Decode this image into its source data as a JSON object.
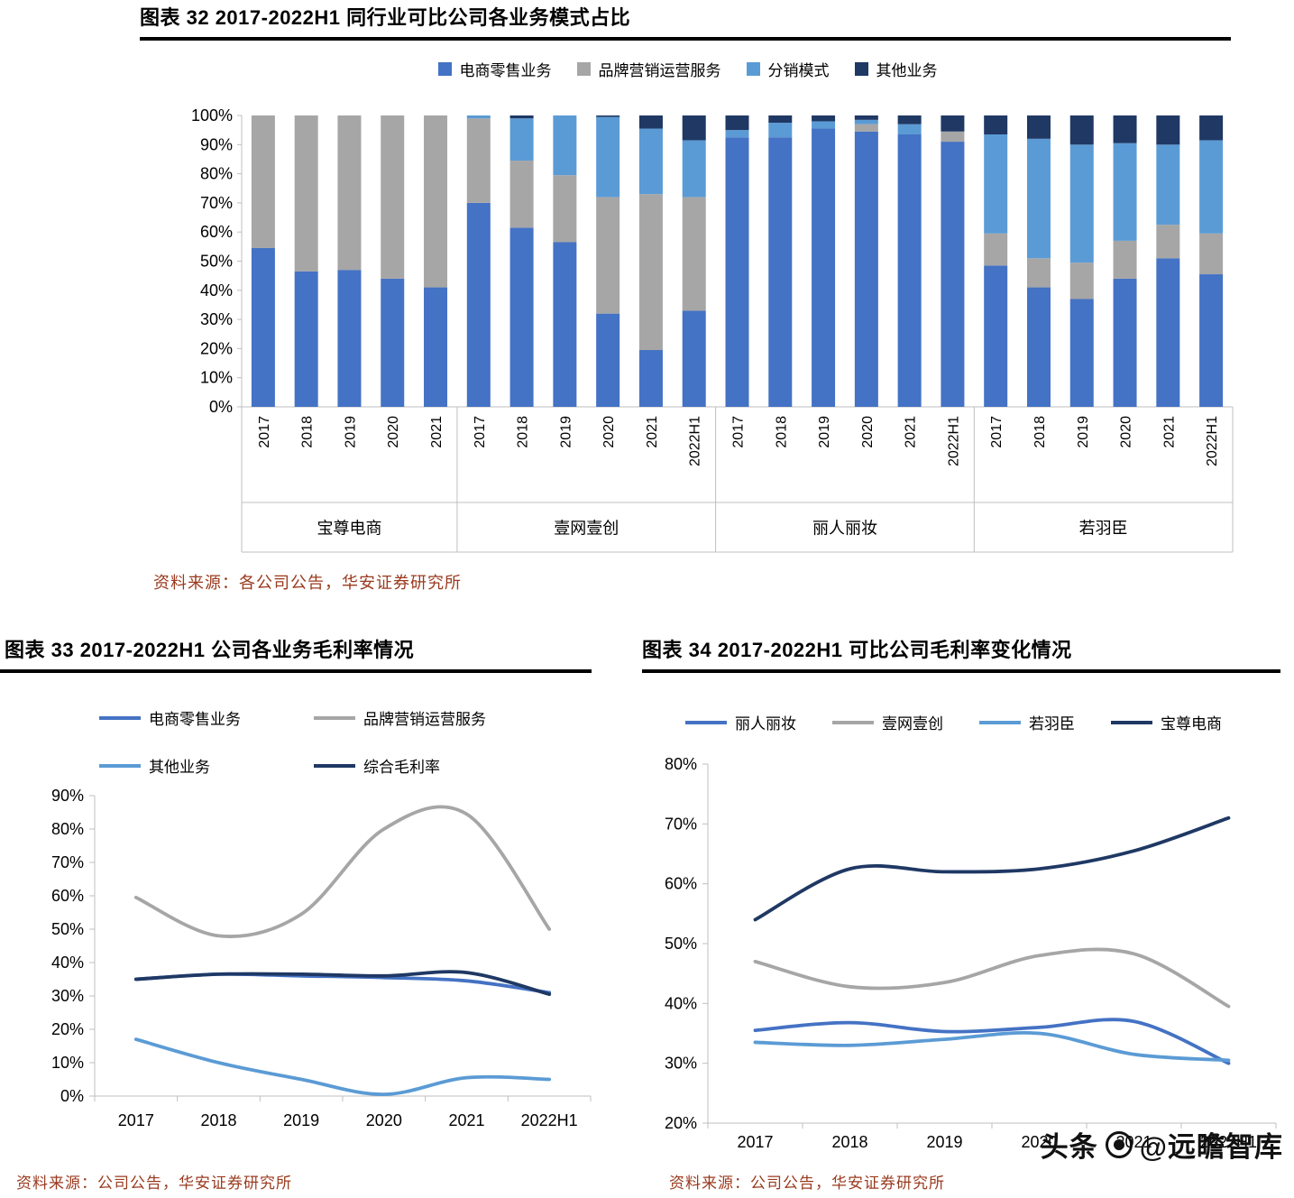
{
  "figures": [
    {
      "title": "图表 32 2017-2022H1 同行业可比公司各业务模式占比",
      "source": "资料来源：各公司公告，华安证券研究所"
    },
    {
      "title": "图表 33 2017-2022H1 公司各业务毛利率情况",
      "source": "资料来源：公司公告，华安证券研究所"
    },
    {
      "title": "图表 34 2017-2022H1 可比公司毛利率变化情况",
      "source": "资料来源：公司公告，华安证券研究所"
    }
  ],
  "watermark": {
    "brand": "头条",
    "handle": "@远瞻智库"
  },
  "chart_data": [
    {
      "type": "bar",
      "stacked": true,
      "title": "图表 32 2017-2022H1 同行业可比公司各业务模式占比",
      "ylim": [
        0,
        100
      ],
      "ytick_step": 10,
      "unit": "%",
      "legend_position": "top",
      "grid": false,
      "series": [
        {
          "name": "电商零售业务",
          "color": "#4472C4"
        },
        {
          "name": "品牌营销运营服务",
          "color": "#A6A6A6"
        },
        {
          "name": "分销模式",
          "color": "#5B9BD5"
        },
        {
          "name": "其他业务",
          "color": "#1F3864"
        }
      ],
      "groups": [
        {
          "name": "宝尊电商",
          "categories": [
            "2017",
            "2018",
            "2019",
            "2020",
            "2021"
          ],
          "values": [
            [
              54.5,
              46.5,
              47,
              44,
              41
            ],
            [
              45.5,
              53.5,
              53,
              56,
              59
            ],
            [
              0,
              0,
              0,
              0,
              0
            ],
            [
              0,
              0,
              0,
              0,
              0
            ]
          ]
        },
        {
          "name": "壹网壹创",
          "categories": [
            "2017",
            "2018",
            "2019",
            "2020",
            "2021",
            "2022H1"
          ],
          "values": [
            [
              70,
              61.5,
              56.5,
              32,
              19.5,
              33
            ],
            [
              29,
              23,
              23,
              40,
              53.5,
              39
            ],
            [
              1,
              14.5,
              20.5,
              27.5,
              22.5,
              19.5
            ],
            [
              0,
              1,
              0,
              0.5,
              4.5,
              8.5
            ]
          ]
        },
        {
          "name": "丽人丽妆",
          "categories": [
            "2017",
            "2018",
            "2019",
            "2020",
            "2021",
            "2022H1"
          ],
          "values": [
            [
              92.5,
              92.5,
              95.5,
              94.5,
              93.5,
              91
            ],
            [
              0,
              0,
              0,
              2.5,
              0,
              3.5
            ],
            [
              2.5,
              5,
              2.5,
              1.5,
              3.5,
              0
            ],
            [
              5,
              2.5,
              2,
              1.5,
              3,
              5.5
            ]
          ]
        },
        {
          "name": "若羽臣",
          "categories": [
            "2017",
            "2018",
            "2019",
            "2020",
            "2021",
            "2022H1"
          ],
          "values": [
            [
              48.5,
              41,
              37,
              44,
              51,
              45.5
            ],
            [
              11,
              10,
              12.5,
              13,
              11.5,
              14
            ],
            [
              34,
              41,
              40.5,
              33.5,
              27.5,
              32
            ],
            [
              6.5,
              8,
              10,
              9.5,
              10,
              8.5
            ]
          ]
        }
      ]
    },
    {
      "type": "line",
      "title": "图表 33 2017-2022H1 公司各业务毛利率情况",
      "x": [
        "2017",
        "2018",
        "2019",
        "2020",
        "2021",
        "2022H1"
      ],
      "ylim": [
        0,
        90
      ],
      "ytick_step": 10,
      "unit": "%",
      "smooth": true,
      "grid": false,
      "legend_position": "top",
      "series": [
        {
          "name": "电商零售业务",
          "color": "#4472C4",
          "values": [
            35,
            36.5,
            36,
            35.5,
            34.5,
            31
          ]
        },
        {
          "name": "品牌营销运营服务",
          "color": "#A6A6A6",
          "values": [
            59.5,
            48,
            54.5,
            80,
            84.5,
            50
          ]
        },
        {
          "name": "其他业务",
          "color": "#5B9BD5",
          "values": [
            17,
            10,
            5,
            0.5,
            5.5,
            5
          ]
        },
        {
          "name": "综合毛利率",
          "color": "#1F3864",
          "values": [
            35,
            36.5,
            36.5,
            36,
            37,
            30.5
          ]
        }
      ]
    },
    {
      "type": "line",
      "title": "图表 34 2017-2022H1 可比公司毛利率变化情况",
      "x": [
        "2017",
        "2018",
        "2019",
        "2020",
        "2021",
        "2022H1"
      ],
      "ylim": [
        20,
        80
      ],
      "ytick_step": 10,
      "unit": "%",
      "smooth": true,
      "grid": false,
      "legend_position": "top",
      "series": [
        {
          "name": "丽人丽妆",
          "color": "#4472C4",
          "values": [
            35.5,
            36.8,
            35.3,
            36,
            37,
            30
          ]
        },
        {
          "name": "壹网壹创",
          "color": "#A6A6A6",
          "values": [
            47,
            42.8,
            43.5,
            48,
            48.3,
            39.5
          ]
        },
        {
          "name": "若羽臣",
          "color": "#5B9BD5",
          "values": [
            33.5,
            33,
            34,
            35,
            31.5,
            30.5
          ]
        },
        {
          "name": "宝尊电商",
          "color": "#1F3864",
          "values": [
            54,
            62.5,
            62,
            62.5,
            65.5,
            71
          ]
        }
      ]
    }
  ]
}
